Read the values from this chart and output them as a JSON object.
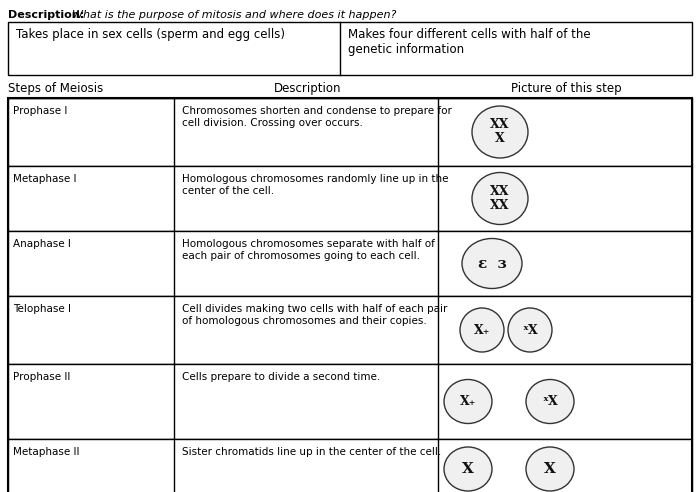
{
  "description_label": "Description:",
  "description_text": "What is the purpose of mitosis and where does it happen?",
  "answer_box": {
    "cell1": "Takes place in sex cells (sperm and egg cells)",
    "cell2": "Makes four different cells with half of the\ngenetic information"
  },
  "column_headers": [
    "Steps of Meiosis",
    "Description",
    "Picture of this step"
  ],
  "rows": [
    {
      "step": "Prophase I",
      "description": "Chromosomes shorten and condense to prepare for\ncell division. Crossing over occurs."
    },
    {
      "step": "Metaphase I",
      "description": "Homologous chromosomes randomly line up in the\ncenter of the cell."
    },
    {
      "step": "Anaphase I",
      "description": "Homologous chromosomes separate with half of\neach pair of chromosomes going to each cell."
    },
    {
      "step": "Telophase I",
      "description": "Cell divides making two cells with half of each pair\nof homologous chromosomes and their copies."
    },
    {
      "step": "Prophase II",
      "description": "Cells prepare to divide a second time."
    },
    {
      "step": "Metaphase II",
      "description": "Sister chromatids line up in the center of the cell."
    }
  ],
  "bg_color": "#ffffff",
  "text_color": "#000000",
  "border_color": "#000000",
  "font_size_description": 7.5,
  "font_size_header": 8.5,
  "font_size_body": 7.5,
  "font_size_title": 8.0
}
